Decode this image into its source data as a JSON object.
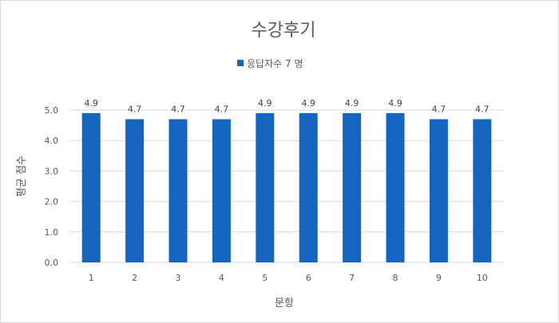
{
  "chart_data": {
    "type": "bar",
    "title": "수강후기",
    "categories": [
      "1",
      "2",
      "3",
      "4",
      "5",
      "6",
      "7",
      "8",
      "9",
      "10"
    ],
    "series": [
      {
        "name": "응답자수 7 명",
        "values": [
          4.9,
          4.7,
          4.7,
          4.7,
          4.9,
          4.9,
          4.9,
          4.9,
          4.7,
          4.7
        ],
        "color": "#1565C0"
      }
    ],
    "xlabel": "문항",
    "ylabel": "평균 점수",
    "ylim": [
      0,
      5
    ],
    "yticks": [
      "0.0",
      "1.0",
      "2.0",
      "3.0",
      "4.0",
      "5.0"
    ],
    "grid": true,
    "gridColor": "#d9d9d9",
    "legend": "top-center",
    "dataLabels": true
  }
}
